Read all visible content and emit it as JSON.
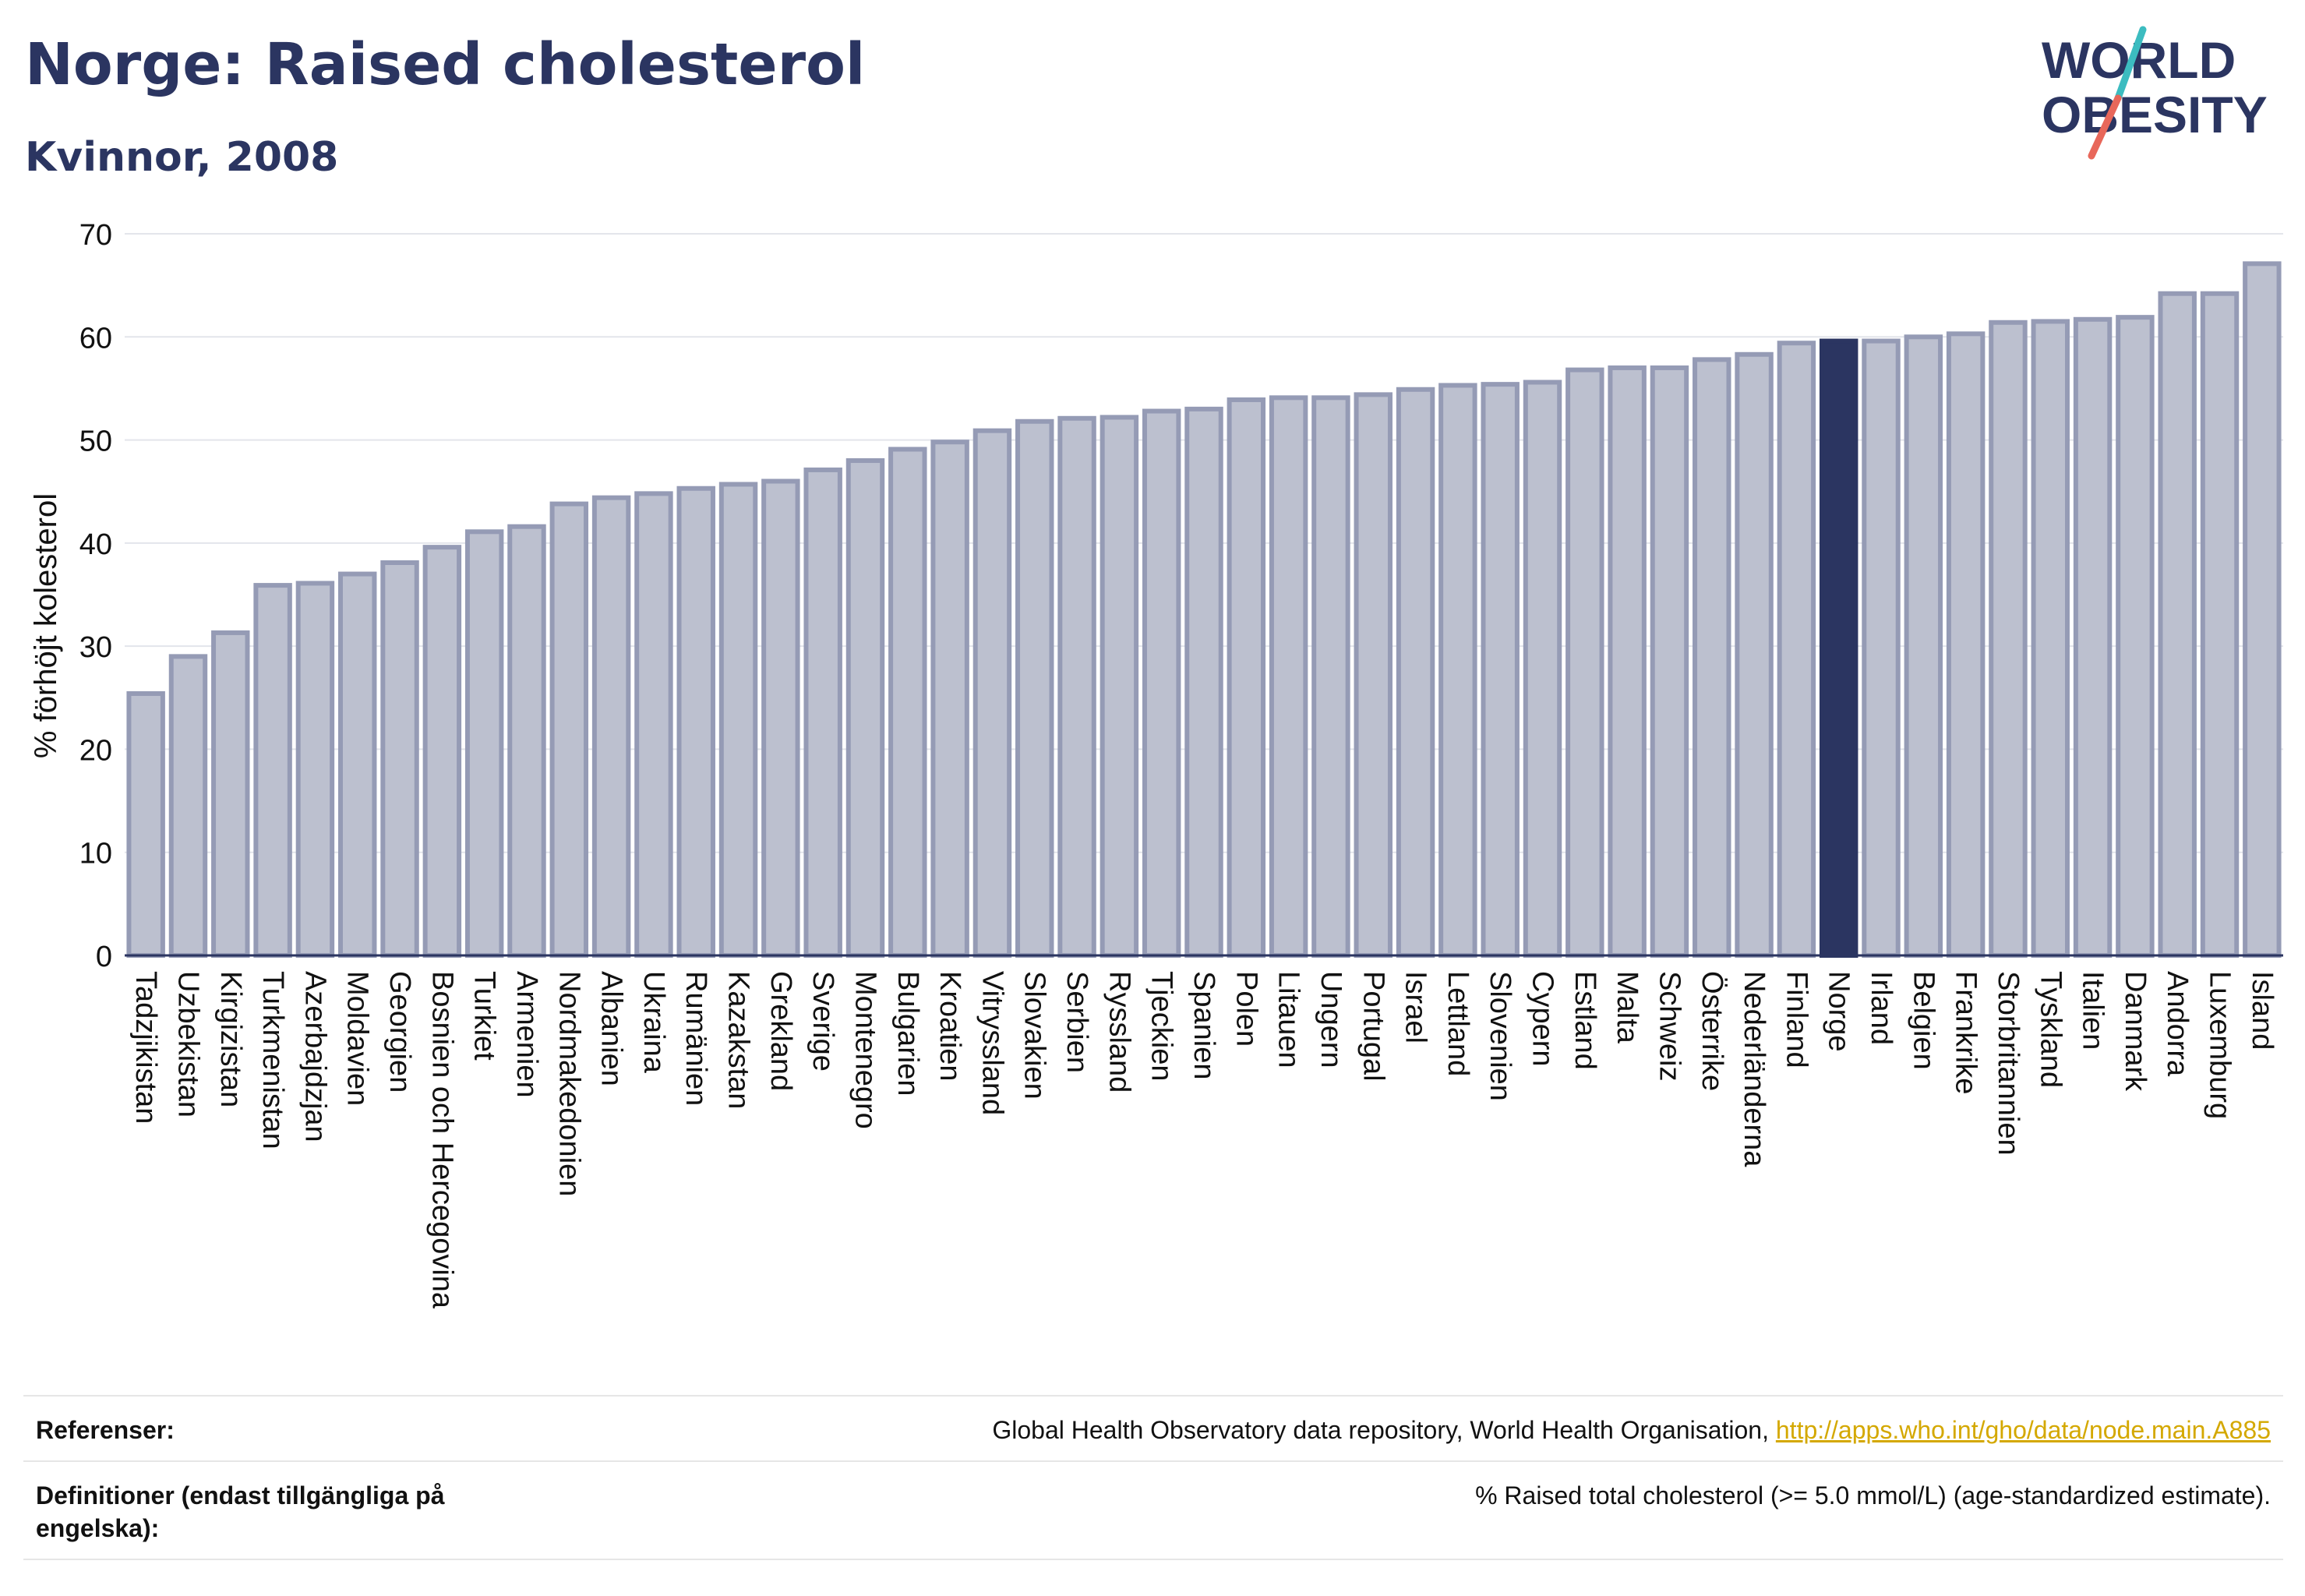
{
  "header": {
    "title": "Norge: Raised cholesterol",
    "subtitle": "Kvinnor, 2008"
  },
  "logo": {
    "line1": "WORLD",
    "line2": "OBESITY",
    "colors": {
      "text": "#2b3561",
      "slash_teal": "#3cbcc0",
      "slash_red": "#e8675a"
    }
  },
  "chart_data": {
    "type": "bar",
    "ylabel": "% förhöjt kolesterol",
    "ylim": [
      0,
      70
    ],
    "yticks": [
      0,
      10,
      20,
      30,
      40,
      50,
      60,
      70
    ],
    "grid": true,
    "highlight": "Norge",
    "colors": {
      "bar": "#bcc0cf",
      "bar_edge": "#959bb5",
      "highlight": "#2b3561"
    },
    "categories": [
      "Tadzjikistan",
      "Uzbekistan",
      "Kirgizistan",
      "Turkmenistan",
      "Azerbajdzjan",
      "Moldavien",
      "Georgien",
      "Bosnien och Hercegovina",
      "Turkiet",
      "Armenien",
      "Nordmakedonien",
      "Albanien",
      "Ukraina",
      "Rumänien",
      "Kazakstan",
      "Grekland",
      "Sverige",
      "Montenegro",
      "Bulgarien",
      "Kroatien",
      "Vitryssland",
      "Slovakien",
      "Serbien",
      "Ryssland",
      "Tjeckien",
      "Spanien",
      "Polen",
      "Litauen",
      "Ungern",
      "Portugal",
      "Israel",
      "Lettland",
      "Slovenien",
      "Cypern",
      "Estland",
      "Malta",
      "Schweiz",
      "Österrike",
      "Nederländerna",
      "Finland",
      "Norge",
      "Irland",
      "Belgien",
      "Frankrike",
      "Storbritannien",
      "Tyskland",
      "Italien",
      "Danmark",
      "Andorra",
      "Luxemburg",
      "Island"
    ],
    "values": [
      25.4,
      29.0,
      31.3,
      35.9,
      36.1,
      37.0,
      38.1,
      39.6,
      41.1,
      41.6,
      43.8,
      44.4,
      44.8,
      45.3,
      45.7,
      46.0,
      47.1,
      48.0,
      49.1,
      49.8,
      50.9,
      51.8,
      52.1,
      52.2,
      52.8,
      53.0,
      53.9,
      54.1,
      54.1,
      54.4,
      54.9,
      55.3,
      55.4,
      55.6,
      56.8,
      57.0,
      57.0,
      57.8,
      58.3,
      59.4,
      59.6,
      59.6,
      60.0,
      60.3,
      61.4,
      61.5,
      61.7,
      61.9,
      64.2,
      64.2,
      67.1
    ]
  },
  "footer": {
    "references_label": "Referenser:",
    "references_text": "Global Health Observatory data repository, World Health Organisation, ",
    "references_link": "http://apps.who.int/gho/data/node.main.A885",
    "definitions_label": "Definitioner (endast tillgängliga på engelska):",
    "definitions_text": "% Raised total cholesterol (>= 5.0 mmol/L) (age-standardized estimate)."
  }
}
